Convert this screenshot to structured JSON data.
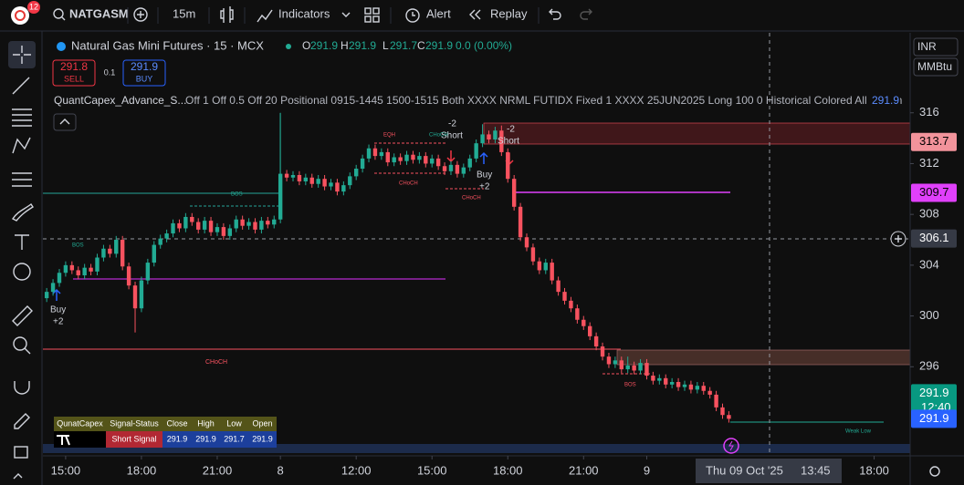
{
  "toolbar": {
    "badge": "12",
    "symbol": "NATGASM",
    "interval": "15m",
    "indicators": "Indicators",
    "alert": "Alert",
    "replay": "Replay"
  },
  "legend": {
    "title": "Natural Gas Mini Futures · 15 · MCX",
    "o_label": "O",
    "o": 291.9,
    "h_label": "H",
    "h": 291.9,
    "l_label": "L",
    "l": 291.7,
    "c_label": "C",
    "c": 291.9,
    "change": "0.0 (0.00%)"
  },
  "trade": {
    "sell_price": 291.8,
    "sell": "SELL",
    "spread": 0.1,
    "buy_price": 291.9,
    "buy": "BUY"
  },
  "indicator": {
    "name": "QuantCapex_Advance_S...",
    "params": "Off 1 Off 0.5 Off 20 Positional 0915-1445 1500-1515 Both XXXX NRML FUTIDX Fixed 1 XXXX 25JUN2025 Long 100 0 Historical Colored All All Tim",
    "value": 291.9
  },
  "currency": "INR",
  "unit": "MMBtu",
  "signal_table": {
    "headers": [
      "QunatCapex",
      "Signal-Status",
      "Close",
      "High",
      "Low",
      "Open"
    ],
    "row": [
      "Short Signal",
      291.9,
      291.9,
      291.7,
      291.9
    ]
  },
  "chart_data": {
    "type": "candlestick",
    "up_color": "#22ab94",
    "down_color": "#f7525f",
    "open": [
      301.4,
      301.9,
      302.6,
      303.4,
      304.0,
      303.6,
      303.2,
      303.8,
      303.5,
      304.6,
      305.3,
      304.9,
      306.0,
      303.9,
      302.4,
      300.6,
      302.8,
      304.2,
      305.6,
      306.1,
      306.5,
      307.3,
      306.9,
      307.8,
      307.4,
      306.8,
      307.5,
      306.6,
      307.0,
      306.3,
      306.9,
      307.6,
      307.1,
      307.4,
      306.8,
      307.5,
      307.2,
      307.6,
      311.2,
      310.9,
      311.1,
      310.6,
      310.9,
      310.4,
      310.8,
      310.2,
      310.5,
      309.8,
      310.3,
      311.0,
      311.6,
      312.4,
      313.2,
      312.6,
      312.9,
      312.1,
      312.5,
      312.2,
      312.7,
      312.3,
      312.6,
      312.0,
      312.4,
      311.8,
      311.4,
      311.9,
      311.2,
      311.7,
      312.4,
      313.6,
      314.3,
      313.9,
      314.6,
      312.9,
      310.8,
      308.6,
      306.2,
      305.4,
      304.3,
      303.6,
      304.2,
      302.8,
      301.9,
      301.2,
      300.6,
      299.7,
      299.2,
      298.4,
      297.6,
      296.8,
      296.2,
      296.5,
      295.8,
      296.1,
      295.7,
      296.3,
      295.3,
      294.9,
      295.1,
      294.6,
      294.8,
      294.4,
      294.6,
      294.2,
      294.5,
      294.1,
      293.8,
      292.8,
      292.2
    ],
    "high": [
      302.2,
      302.9,
      303.7,
      304.3,
      304.3,
      303.9,
      304.1,
      304.1,
      304.9,
      305.6,
      305.6,
      306.3,
      306.3,
      304.2,
      302.7,
      303.1,
      304.5,
      305.9,
      306.4,
      306.8,
      307.6,
      307.6,
      308.1,
      308.1,
      307.7,
      307.8,
      307.8,
      307.3,
      307.3,
      307.2,
      307.9,
      307.9,
      307.7,
      307.7,
      307.8,
      307.8,
      307.9,
      316.0,
      311.5,
      311.4,
      311.4,
      311.2,
      311.2,
      311.1,
      311.1,
      310.8,
      310.8,
      310.6,
      311.3,
      311.9,
      312.7,
      313.5,
      313.5,
      313.2,
      313.2,
      312.8,
      312.8,
      313.0,
      313.0,
      312.9,
      312.9,
      312.7,
      312.7,
      312.1,
      312.2,
      312.2,
      312.0,
      312.7,
      313.9,
      315.1,
      314.6,
      314.9,
      315.0,
      313.2,
      311.1,
      308.9,
      306.5,
      305.7,
      304.6,
      304.5,
      304.5,
      303.1,
      302.2,
      301.5,
      300.9,
      300.0,
      299.5,
      298.7,
      297.9,
      297.1,
      296.8,
      296.8,
      296.8,
      296.4,
      296.6,
      296.6,
      295.6,
      295.4,
      295.4,
      295.1,
      295.1,
      294.9,
      294.9,
      294.8,
      294.8,
      294.4,
      294.1,
      293.1,
      292.5
    ],
    "low": [
      301.1,
      301.6,
      302.3,
      303.1,
      303.3,
      302.9,
      302.9,
      303.2,
      303.2,
      304.3,
      304.6,
      304.6,
      303.6,
      302.1,
      298.7,
      300.3,
      302.5,
      303.9,
      305.3,
      305.8,
      306.2,
      306.6,
      306.6,
      307.1,
      306.5,
      306.5,
      306.3,
      306.3,
      306.0,
      306.0,
      306.6,
      306.8,
      306.8,
      306.5,
      306.5,
      306.9,
      306.9,
      307.3,
      310.6,
      310.6,
      310.3,
      310.3,
      310.1,
      310.1,
      309.9,
      309.9,
      309.5,
      309.5,
      310.0,
      310.7,
      311.3,
      312.1,
      312.3,
      312.3,
      311.8,
      311.8,
      311.9,
      311.9,
      312.0,
      312.0,
      311.7,
      311.7,
      311.5,
      311.1,
      311.1,
      310.9,
      310.9,
      311.4,
      312.1,
      313.3,
      313.6,
      313.6,
      312.6,
      310.5,
      308.3,
      305.9,
      305.1,
      304.0,
      303.3,
      303.3,
      302.5,
      301.6,
      300.9,
      300.3,
      299.4,
      298.9,
      298.1,
      297.3,
      296.5,
      295.9,
      295.9,
      295.5,
      295.5,
      295.4,
      295.4,
      295.0,
      294.6,
      294.6,
      294.3,
      294.3,
      294.1,
      294.1,
      293.9,
      293.9,
      293.8,
      293.5,
      292.5,
      291.9,
      291.6
    ],
    "close": [
      301.9,
      302.6,
      303.4,
      304.0,
      303.6,
      303.2,
      303.8,
      303.5,
      304.6,
      305.3,
      304.9,
      306.0,
      303.9,
      302.4,
      300.6,
      302.8,
      304.2,
      305.6,
      306.1,
      306.5,
      307.3,
      306.9,
      307.8,
      307.4,
      306.8,
      307.5,
      306.6,
      307.0,
      306.3,
      306.9,
      307.6,
      307.1,
      307.4,
      306.8,
      307.5,
      307.2,
      307.6,
      311.2,
      310.9,
      311.1,
      310.6,
      310.9,
      310.4,
      310.8,
      310.2,
      310.5,
      309.8,
      310.3,
      311.0,
      311.6,
      312.4,
      313.2,
      312.6,
      312.9,
      312.1,
      312.5,
      312.2,
      312.7,
      312.3,
      312.6,
      312.0,
      312.4,
      311.8,
      311.4,
      311.9,
      311.2,
      311.7,
      312.4,
      313.6,
      314.3,
      313.9,
      314.6,
      312.9,
      310.8,
      308.6,
      306.2,
      305.4,
      304.3,
      303.6,
      304.2,
      302.8,
      301.9,
      301.2,
      300.6,
      299.7,
      299.2,
      298.4,
      297.6,
      296.8,
      296.2,
      296.5,
      295.8,
      296.1,
      295.7,
      296.3,
      295.3,
      294.9,
      295.1,
      294.6,
      294.8,
      294.4,
      294.6,
      294.2,
      294.5,
      294.1,
      293.8,
      292.8,
      292.2,
      291.9
    ],
    "ylim": [
      289.2,
      322.3
    ],
    "yticks": [
      296,
      300,
      304,
      308,
      312,
      316
    ],
    "xlim": [
      -0.6,
      136.7
    ],
    "xticks": [
      {
        "value": 3,
        "label": "15:00"
      },
      {
        "value": 15,
        "label": "18:00"
      },
      {
        "value": 27,
        "label": "21:00"
      },
      {
        "value": 37,
        "label": "8"
      },
      {
        "value": 49,
        "label": "12:00"
      },
      {
        "value": 61,
        "label": "15:00"
      },
      {
        "value": 73,
        "label": "18:00"
      },
      {
        "value": 85,
        "label": "21:00"
      },
      {
        "value": 95,
        "label": "9"
      },
      {
        "value": 131,
        "label": "18:00"
      }
    ],
    "price_tags": [
      {
        "value": 313.7,
        "color": "#f2939b"
      },
      {
        "value": 309.7,
        "color": "#e040fb"
      },
      {
        "value": 306.1,
        "color": "#363a45"
      },
      {
        "value": 291.9,
        "color": "#089981",
        "countdown": "12:40"
      },
      {
        "value": 291.9,
        "color": "#2962ff"
      }
    ],
    "annotations": [
      "Buy",
      "+2",
      "-2",
      "Short",
      "-2",
      "Short",
      "Buy",
      "+2",
      "EQH",
      "CHoCH",
      "CHoCH",
      "CHoCH",
      "BOS",
      "BOS",
      "CHoCH",
      "BOS",
      "Weak Low"
    ],
    "crosshair": {
      "date": "Thu 09 Oct '25",
      "time": "13:45"
    }
  }
}
